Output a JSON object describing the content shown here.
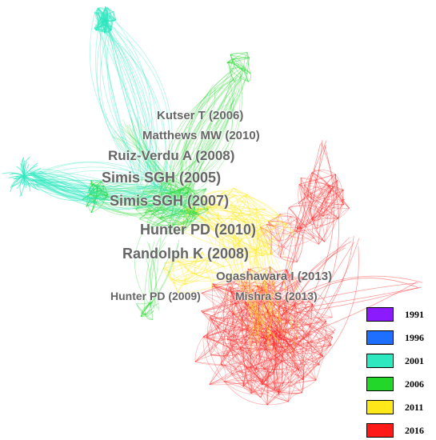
{
  "labels": [
    "Kutser T (2006)",
    "Matthews MW (2010)",
    "Ruiz-Verdu A (2008)",
    "Simis SGH (2005)",
    "Simis SGH (2007)",
    "Hunter PD (2010)",
    "Randolph K (2008)",
    "Ogashawara I (2013)",
    "Hunter PD (2009)",
    "Mishra S (2013)"
  ],
  "legend": [
    {
      "year": "1991",
      "color": "#8c1aff"
    },
    {
      "year": "1996",
      "color": "#1f6fff"
    },
    {
      "year": "2001",
      "color": "#2ee8c0"
    },
    {
      "year": "2006",
      "color": "#22d62a"
    },
    {
      "year": "2011",
      "color": "#ffe81a"
    },
    {
      "year": "2016",
      "color": "#ff1a1a"
    }
  ]
}
